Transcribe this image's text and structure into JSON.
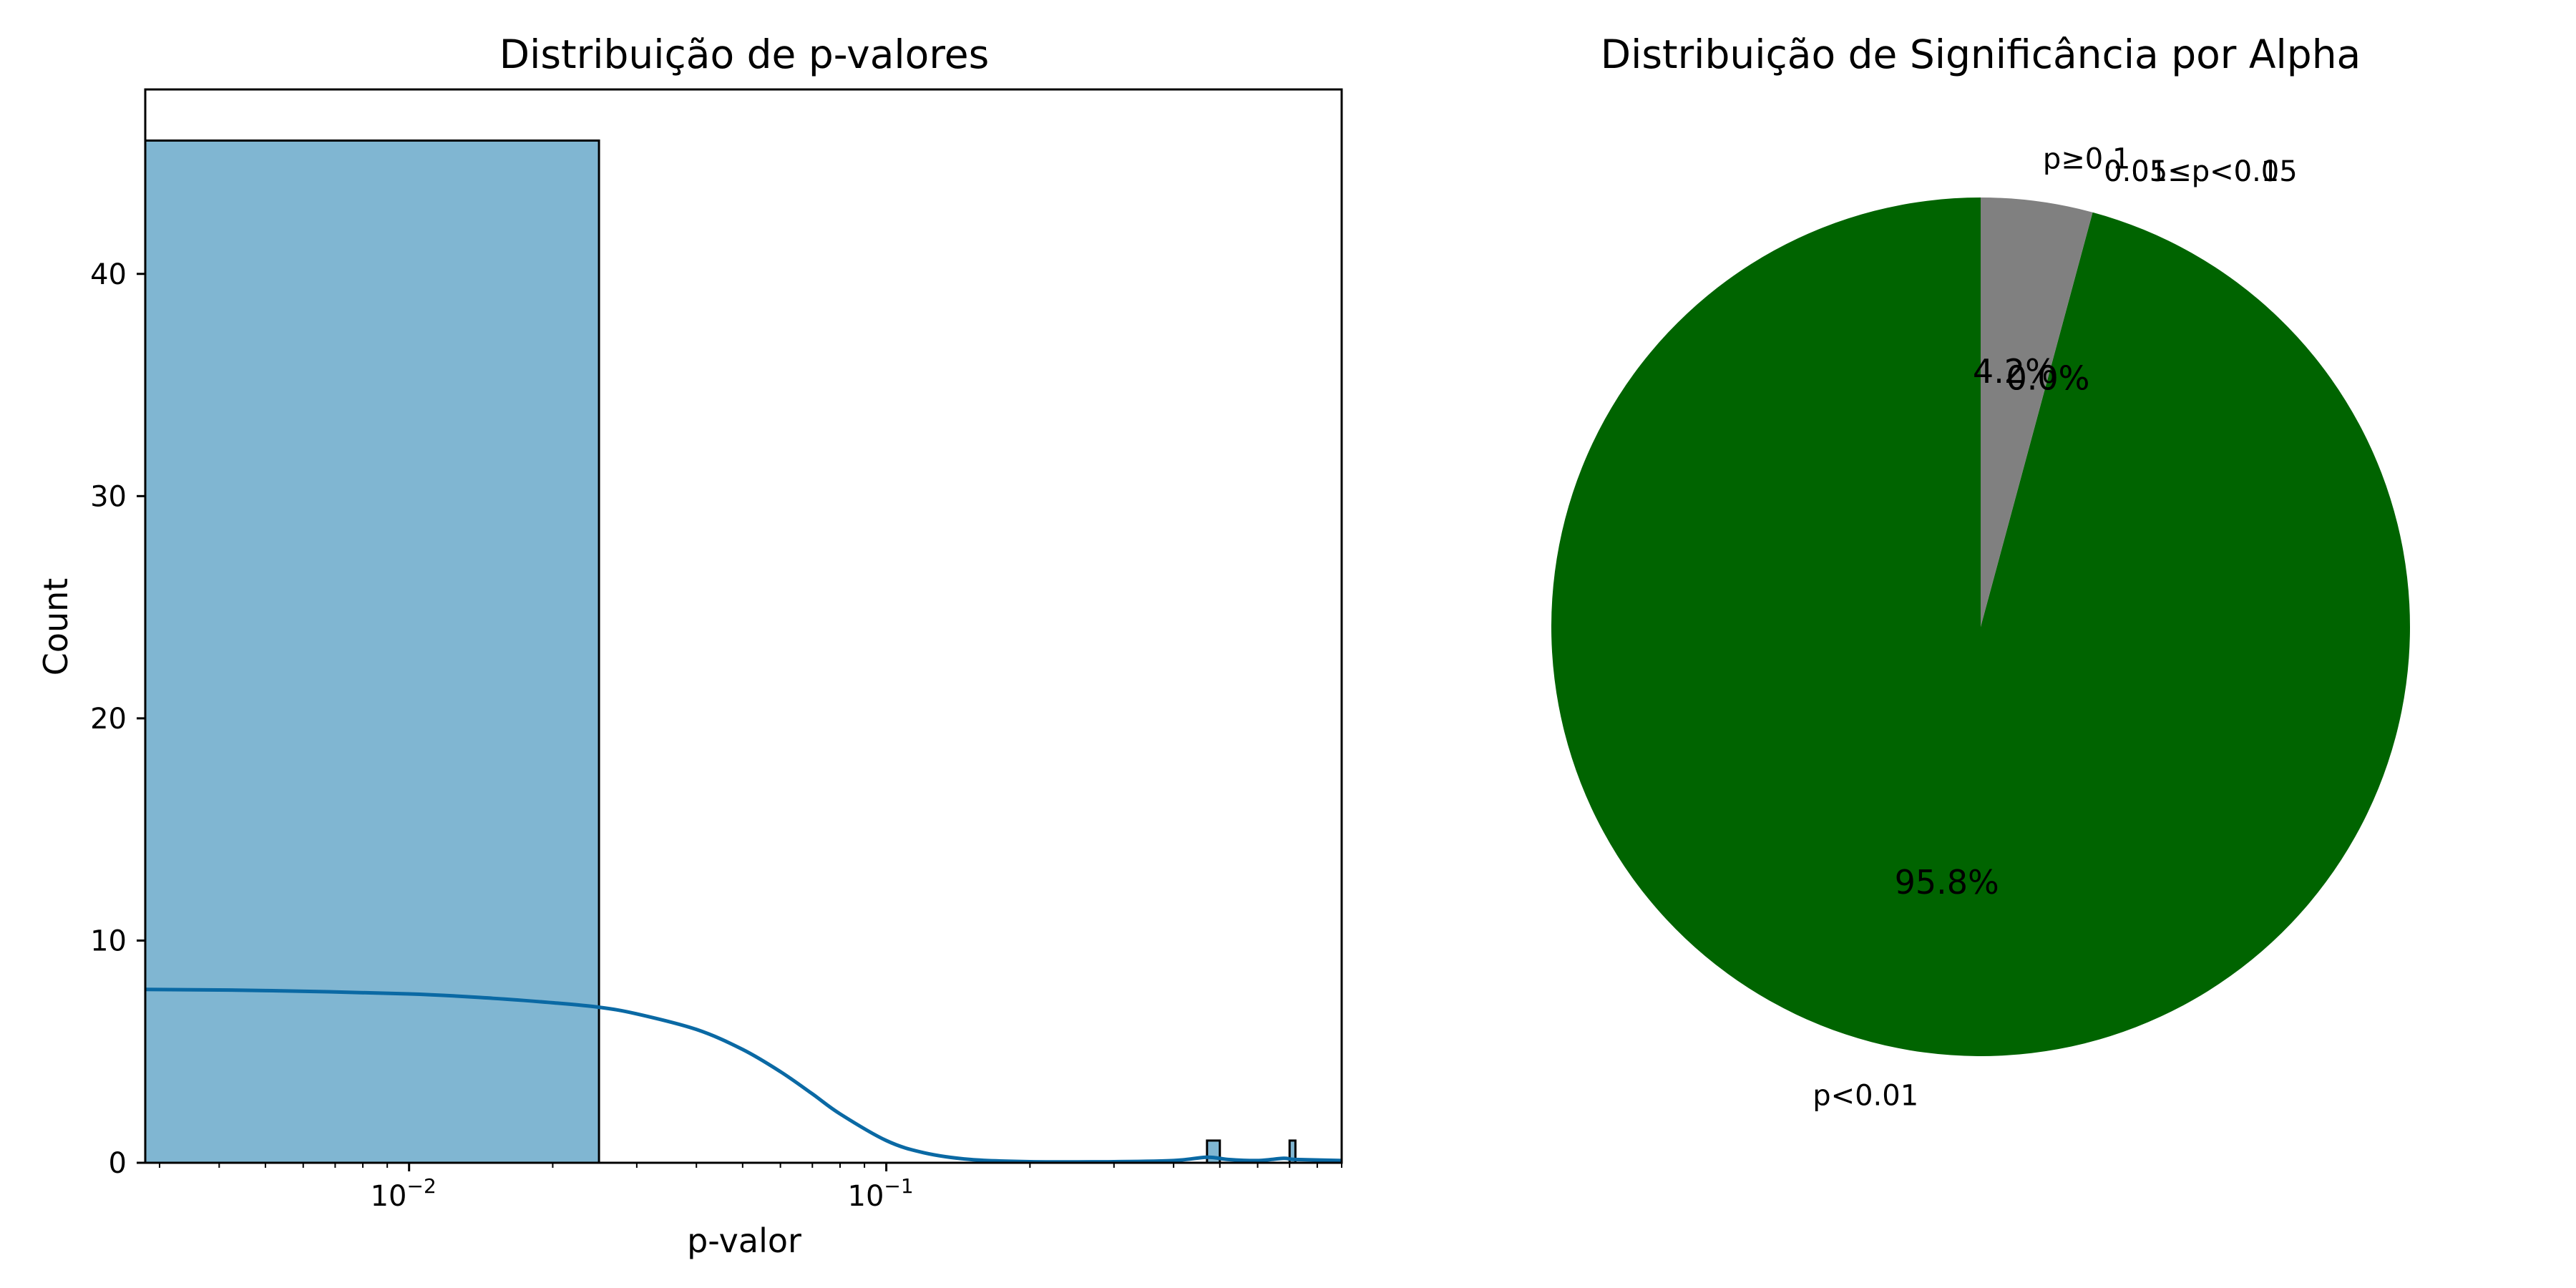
{
  "chart_data": [
    {
      "type": "histogram",
      "title": "Distribuição de p-valores",
      "xlabel": "p-valor",
      "ylabel": "Count",
      "xscale": "log",
      "xlim": [
        0.0028,
        0.9
      ],
      "ylim": [
        0,
        48.3
      ],
      "x_ticks": [
        {
          "value": 0.01,
          "base": "10",
          "exp": "−2"
        },
        {
          "value": 0.1,
          "base": "10",
          "exp": "−1"
        }
      ],
      "y_ticks": [
        0,
        10,
        20,
        30,
        40
      ],
      "bars": [
        {
          "x_start": 0.0028,
          "x_end": 0.025,
          "count": 46
        },
        {
          "x_start": 0.47,
          "x_end": 0.5,
          "count": 1
        },
        {
          "x_start": 0.7,
          "x_end": 0.72,
          "count": 1
        }
      ],
      "kde": {
        "x": [
          0.0028,
          0.005,
          0.01,
          0.015,
          0.02,
          0.025,
          0.03,
          0.04,
          0.05,
          0.06,
          0.07,
          0.08,
          0.1,
          0.12,
          0.15,
          0.2,
          0.3,
          0.4,
          0.47,
          0.52,
          0.6,
          0.68,
          0.72,
          0.9
        ],
        "y": [
          7.8,
          7.75,
          7.6,
          7.4,
          7.2,
          7.0,
          6.7,
          6.0,
          5.1,
          4.1,
          3.1,
          2.2,
          1.0,
          0.45,
          0.15,
          0.05,
          0.05,
          0.1,
          0.25,
          0.15,
          0.1,
          0.2,
          0.15,
          0.1
        ]
      },
      "colors": {
        "bar_fill": "#80b6d2",
        "bar_edge": "#000000",
        "kde_line": "#0a69a4"
      }
    },
    {
      "type": "pie",
      "title": "Distribuição de Significância por Alpha",
      "slices": [
        {
          "label": "p<0.01",
          "value": 95.8,
          "pct_label": "95.8%",
          "color": "#006400"
        },
        {
          "label": "0.01≤p<0.05",
          "value": 0.0,
          "pct_label": "0.0%",
          "color": "#ffa500"
        },
        {
          "label": "0.05≤p<0.1",
          "value": 0.0,
          "pct_label": "0.0%",
          "color": "#ff0000"
        },
        {
          "label": "p≥0.1",
          "value": 4.2,
          "pct_label": "4.2%",
          "color": "#808080"
        }
      ],
      "start_angle": 90,
      "direction": "counterclockwise"
    }
  ]
}
